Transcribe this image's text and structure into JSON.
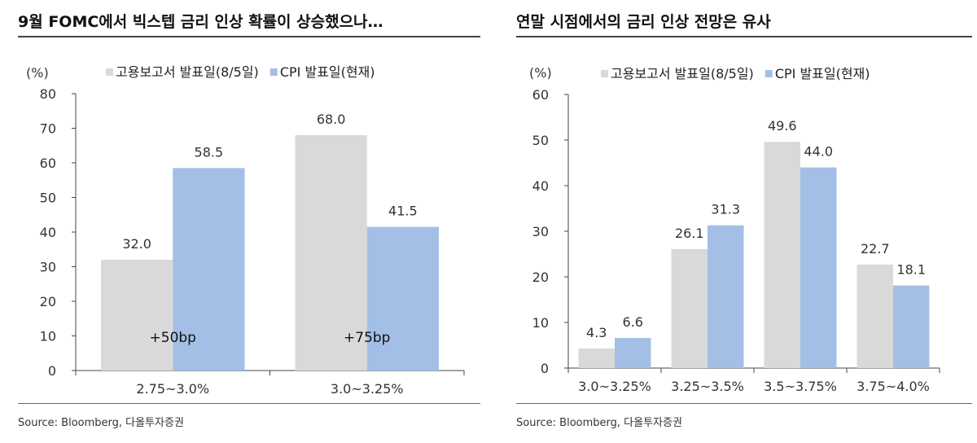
{
  "chart_data": [
    {
      "type": "bar",
      "title": "9월 FOMC에서 빅스텝 금리 인상 확률이 상승했으나…",
      "unit": "(%)",
      "categories": [
        "2.75~3.0%",
        "3.0~3.25%"
      ],
      "series": [
        {
          "name": "고용보고서 발표일(8/5일)",
          "color": "#d9d9d9",
          "values": [
            32.0,
            68.0
          ]
        },
        {
          "name": "CPI 발표일(현재)",
          "color": "#a3bfe5",
          "values": [
            58.5,
            41.5
          ]
        }
      ],
      "annotations": [
        "+50bp",
        "+75bp"
      ],
      "ylim": [
        0,
        80
      ],
      "yticks": [
        0,
        10,
        20,
        30,
        40,
        50,
        60,
        70,
        80
      ],
      "legend": "top",
      "grid": false,
      "source": "Source: Bloomberg, 다올투자증권"
    },
    {
      "type": "bar",
      "title": "연말 시점에서의 금리 인상 전망은 유사",
      "unit": "(%)",
      "categories": [
        "3.0~3.25%",
        "3.25~3.5%",
        "3.5~3.75%",
        "3.75~4.0%"
      ],
      "series": [
        {
          "name": "고용보고서 발표일(8/5일)",
          "color": "#d9d9d9",
          "values": [
            4.3,
            26.1,
            49.6,
            22.7
          ]
        },
        {
          "name": "CPI 발표일(현재)",
          "color": "#a3bfe5",
          "values": [
            6.6,
            31.3,
            44.0,
            18.1
          ]
        }
      ],
      "ylim": [
        0,
        60
      ],
      "yticks": [
        0,
        10,
        20,
        30,
        40,
        50,
        60
      ],
      "legend": "top",
      "grid": false,
      "source": "Source: Bloomberg, 다올투자증권"
    }
  ]
}
